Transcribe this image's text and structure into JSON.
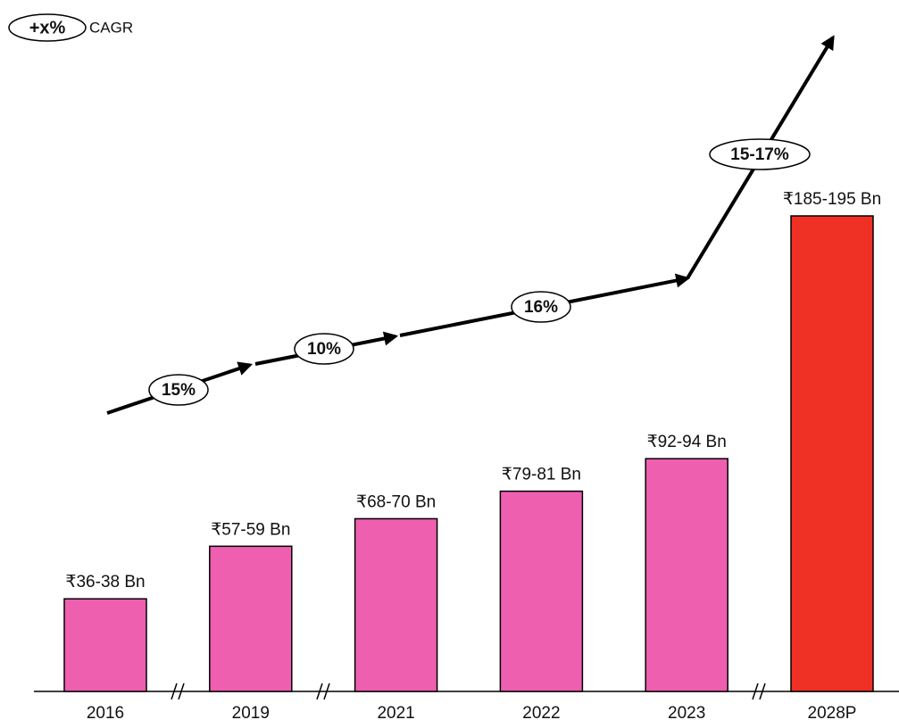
{
  "chart_data": {
    "type": "bar",
    "legend_symbol": "+x%",
    "legend_label": "CAGR",
    "categories": [
      "2016",
      "2019",
      "2021",
      "2022",
      "2023",
      "2028P"
    ],
    "values": [
      37,
      58,
      69,
      80,
      93,
      190
    ],
    "value_labels": [
      "₹36-38 Bn",
      "₹57-59 Bn",
      "₹68-70 Bn",
      "₹79-81 Bn",
      "₹92-94 Bn",
      "₹185-195 Bn"
    ],
    "colors": [
      "#ee5fb0",
      "#ee5fb0",
      "#ee5fb0",
      "#ee5fb0",
      "#ee5fb0",
      "#ee3124"
    ],
    "cagr_labels": [
      "15%",
      "10%",
      "16%",
      "15-17%"
    ]
  }
}
